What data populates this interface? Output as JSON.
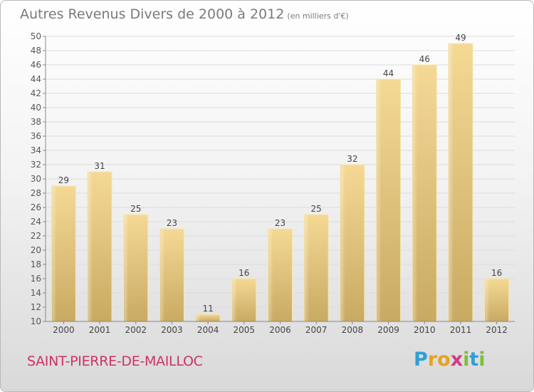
{
  "header": {
    "title": "Autres Revenus Divers de 2000 à 2012",
    "unit": "(en milliers d'€)"
  },
  "footer": {
    "commune": "SAINT-PIERRE-DE-MAILLOC",
    "logo_letters": [
      "P",
      "r",
      "o",
      "x",
      "i",
      "t",
      "i"
    ],
    "logo_colors": [
      "#2f9fd8",
      "#e8a21f",
      "#e8a21f",
      "#d23a8a",
      "#7cbf3a",
      "#2f9fd8",
      "#7cbf3a"
    ]
  },
  "chart_data": {
    "type": "bar",
    "title": "Autres Revenus Divers de 2000 à 2012",
    "subtitle": "(en milliers d'€)",
    "xlabel": "",
    "ylabel": "",
    "categories": [
      "2000",
      "2001",
      "2002",
      "2003",
      "2004",
      "2005",
      "2006",
      "2007",
      "2008",
      "2009",
      "2010",
      "2011",
      "2012"
    ],
    "values": [
      29,
      31,
      25,
      23,
      11,
      16,
      23,
      25,
      32,
      44,
      46,
      49,
      16
    ],
    "ylim": [
      10,
      50
    ],
    "yticks": [
      10,
      12,
      14,
      16,
      18,
      20,
      22,
      24,
      26,
      28,
      30,
      32,
      34,
      36,
      38,
      40,
      42,
      44,
      46,
      48,
      50
    ],
    "grid": "horizontal",
    "bar_color": "#e6c97a"
  }
}
